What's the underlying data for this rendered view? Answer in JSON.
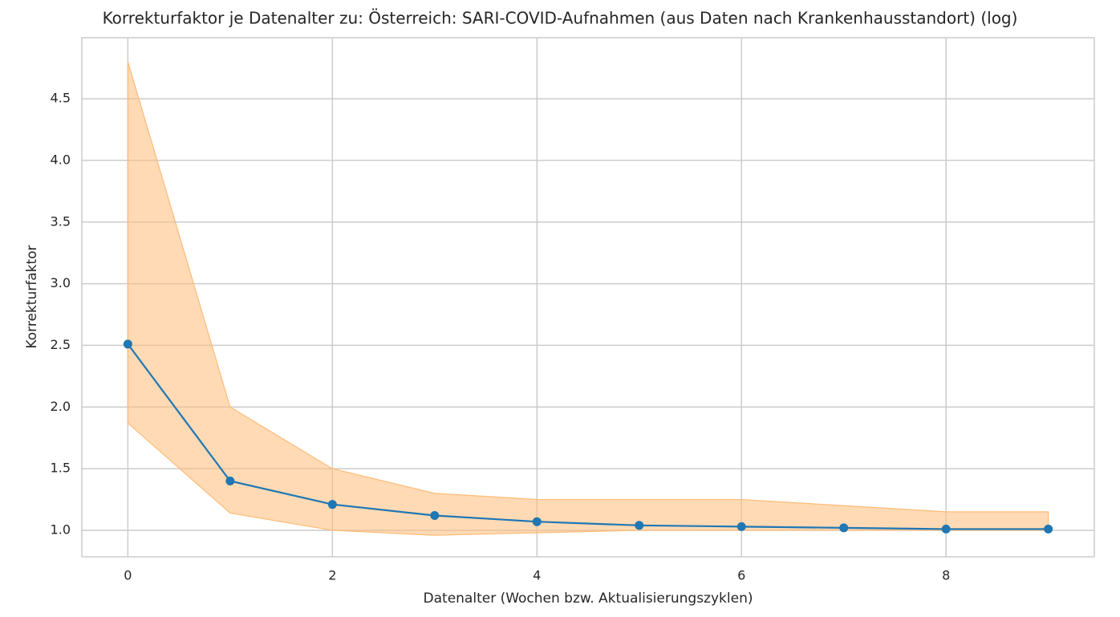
{
  "chart_data": {
    "type": "line",
    "title": "Korrekturfaktor je Datenalter zu: Österreich: SARI-COVID-Aufnahmen (aus Daten nach Krankenhausstandort) (log)",
    "x_label": "Datenalter (Wochen bzw. Aktualisierungszyklen)",
    "y_label": "Korrekturfaktor",
    "x": [
      0,
      1,
      2,
      3,
      4,
      5,
      6,
      7,
      8,
      9
    ],
    "values": [
      2.51,
      1.4,
      1.21,
      1.12,
      1.07,
      1.04,
      1.03,
      1.02,
      1.01,
      1.01
    ],
    "upper": [
      4.8,
      2.0,
      1.5,
      1.3,
      1.25,
      1.25,
      1.25,
      1.2,
      1.15,
      1.15
    ],
    "lower": [
      1.87,
      1.14,
      1.0,
      0.96,
      0.98,
      1.0,
      1.0,
      1.0,
      1.0,
      1.0
    ],
    "color": "#1f77b4",
    "band_color": "#ffbb78",
    "xlim": [
      -0.45,
      9.45
    ],
    "ylim": [
      0.785,
      4.995
    ],
    "xticks": [
      0,
      2,
      4,
      6,
      8
    ],
    "yticks": [
      {
        "value": 1,
        "label": "1.0"
      },
      1.5,
      {
        "value": 2,
        "label": "2.0"
      },
      2.5,
      {
        "value": 3,
        "label": "3.0"
      },
      3.5,
      {
        "value": 4,
        "label": "4.0"
      },
      4.5
    ],
    "grid": true
  }
}
